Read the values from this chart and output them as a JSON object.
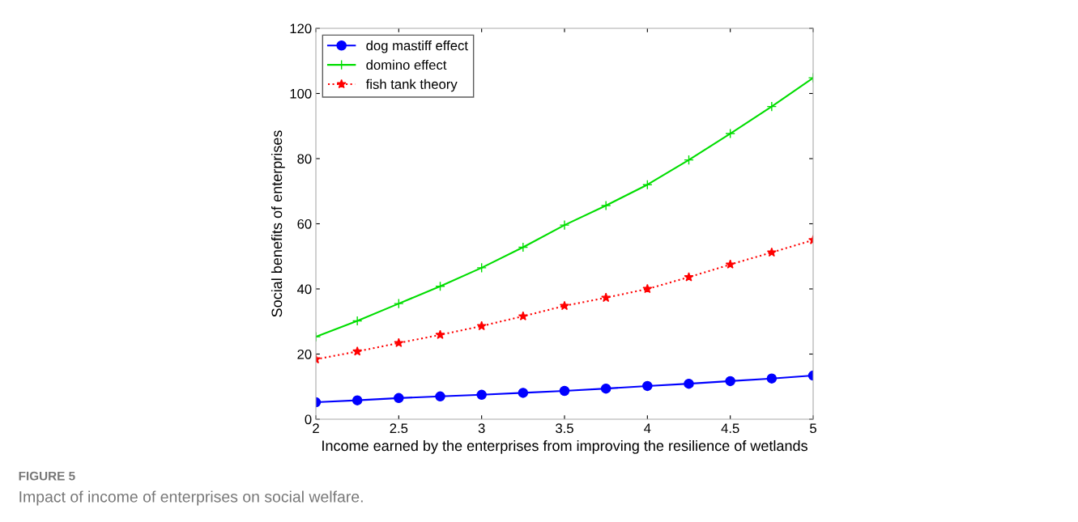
{
  "chart_data": {
    "type": "line",
    "xlabel": "Income earned by the enterprises from improving the resilience of wetlands",
    "ylabel": "Social benefits of enterprises",
    "x": [
      2,
      2.25,
      2.5,
      2.75,
      3,
      3.25,
      3.5,
      3.75,
      4,
      4.25,
      4.5,
      4.75,
      5
    ],
    "series": [
      {
        "name": "dog mastiff effect",
        "color": "#0000ff",
        "marker": "circle",
        "line_style": "solid",
        "values": [
          5.2,
          5.8,
          6.5,
          7.0,
          7.5,
          8.1,
          8.7,
          9.4,
          10.2,
          10.9,
          11.7,
          12.5,
          13.4
        ]
      },
      {
        "name": "domino effect",
        "color": "#00dd00",
        "marker": "cross",
        "line_style": "solid",
        "values": [
          25.3,
          30.2,
          35.5,
          40.8,
          46.5,
          52.8,
          59.6,
          65.6,
          72,
          79.6,
          87.7,
          96,
          104.8
        ]
      },
      {
        "name": "fish tank theory",
        "color": "#ff0000",
        "marker": "star",
        "line_style": "dotted",
        "values": [
          18.4,
          20.8,
          23.4,
          25.9,
          28.6,
          31.6,
          34.8,
          37.3,
          40,
          43.6,
          47.5,
          51.2,
          55
        ]
      }
    ],
    "xlim": [
      2,
      5
    ],
    "xticks": [
      2,
      2.5,
      3,
      3.5,
      4,
      4.5,
      5
    ],
    "ylim": [
      0,
      120
    ],
    "yticks": [
      0,
      20,
      40,
      60,
      80,
      100,
      120
    ],
    "grid": false,
    "legend": "top left",
    "annotations": [
      "FIGURE 5",
      "Impact of income of enterprises on social welfare."
    ]
  }
}
